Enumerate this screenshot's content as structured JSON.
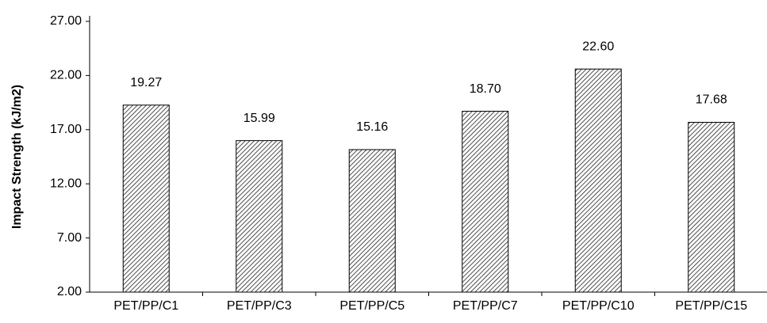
{
  "chart_data": {
    "type": "bar",
    "y_label": "Impact Strength (kJ/m2)",
    "categories": [
      "PET/PP/C1",
      "PET/PP/C3",
      "PET/PP/C5",
      "PET/PP/C7",
      "PET/PP/C10",
      "PET/PP/C15"
    ],
    "values": [
      19.27,
      15.99,
      15.16,
      18.7,
      22.6,
      17.68
    ],
    "value_labels": [
      "19.27",
      "15.99",
      "15.16",
      "18.70",
      "22.60",
      "17.68"
    ],
    "color": "#222222",
    "ylim": [
      2,
      27
    ],
    "yticks": [
      {
        "value": 2,
        "label": "2.00"
      },
      {
        "value": 7,
        "label": "7.00"
      },
      {
        "value": 12,
        "label": "12.00"
      },
      {
        "value": 17,
        "label": "17.00"
      },
      {
        "value": 22,
        "label": "22.00"
      },
      {
        "value": 27,
        "label": "27.00"
      }
    ],
    "grid": false
  }
}
